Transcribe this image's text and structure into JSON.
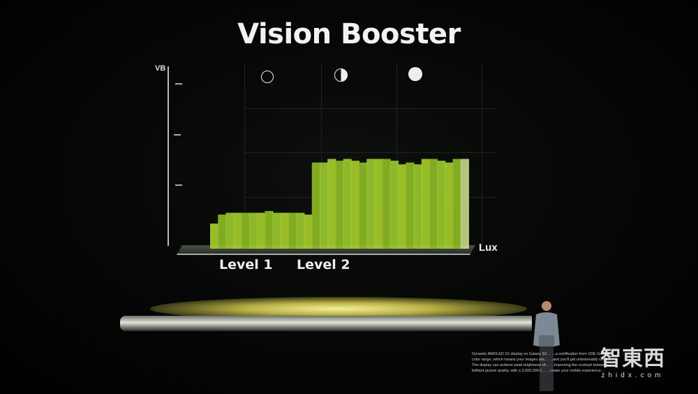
{
  "slide": {
    "title": "Vision Booster",
    "y_axis_label": "VB",
    "x_axis_label": "Lux",
    "level_labels": [
      "Level 1",
      "Level 2"
    ],
    "icons": [
      "empty-circle-icon",
      "half-circle-icon",
      "full-circle-icon"
    ],
    "accent_color": "#9acd32",
    "bars_relative_height": [
      0.14,
      0.19,
      0.2,
      0.2,
      0.2,
      0.2,
      0.2,
      0.21,
      0.2,
      0.2,
      0.2,
      0.2,
      0.19,
      0.48,
      0.48,
      0.5,
      0.49,
      0.5,
      0.49,
      0.48,
      0.5,
      0.5,
      0.5,
      0.49,
      0.47,
      0.48,
      0.47,
      0.5,
      0.5,
      0.49,
      0.48,
      0.5,
      0.5
    ]
  },
  "caption_lines": [
    "Dynamic AMOLED 2X display on Galaxy S2…  …a certification from VDE German…",
    "color range, which means your images are…  …and you'll get unbelievably vivid…",
    "The display can achieve peak brightness of…  …improving the contrast between…",
    "brilliant picture quality, with a 3,000,000:1…  …make your mobile experience…"
  ],
  "watermark": {
    "text": "智東西",
    "url": "zhidx.com"
  }
}
